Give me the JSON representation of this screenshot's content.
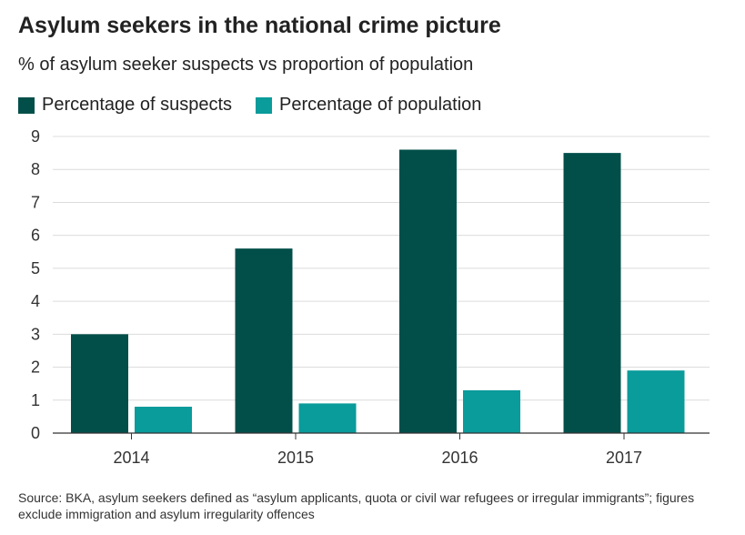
{
  "chart_data": {
    "type": "bar",
    "title": "Asylum seekers in the national crime picture",
    "subtitle": "% of asylum seeker suspects vs proportion of population",
    "categories": [
      "2014",
      "2015",
      "2016",
      "2017"
    ],
    "series": [
      {
        "name": "Percentage of suspects",
        "values": [
          3.0,
          5.6,
          8.6,
          8.5
        ],
        "color": "#024f4a"
      },
      {
        "name": "Percentage of population",
        "values": [
          0.8,
          0.9,
          1.3,
          1.9
        ],
        "color": "#0a9b9b"
      }
    ],
    "yticks": [
      0,
      1,
      2,
      3,
      4,
      5,
      6,
      7,
      8,
      9
    ],
    "ylim": [
      0,
      9
    ],
    "xlabel": "",
    "ylabel": "",
    "grid": true,
    "legend_position": "top-left"
  },
  "source": "Source: BKA, asylum seekers defined as “asylum applicants, quota or civil war refugees or irregular immigrants”; figures exclude immigration and asylum irregularity offences"
}
